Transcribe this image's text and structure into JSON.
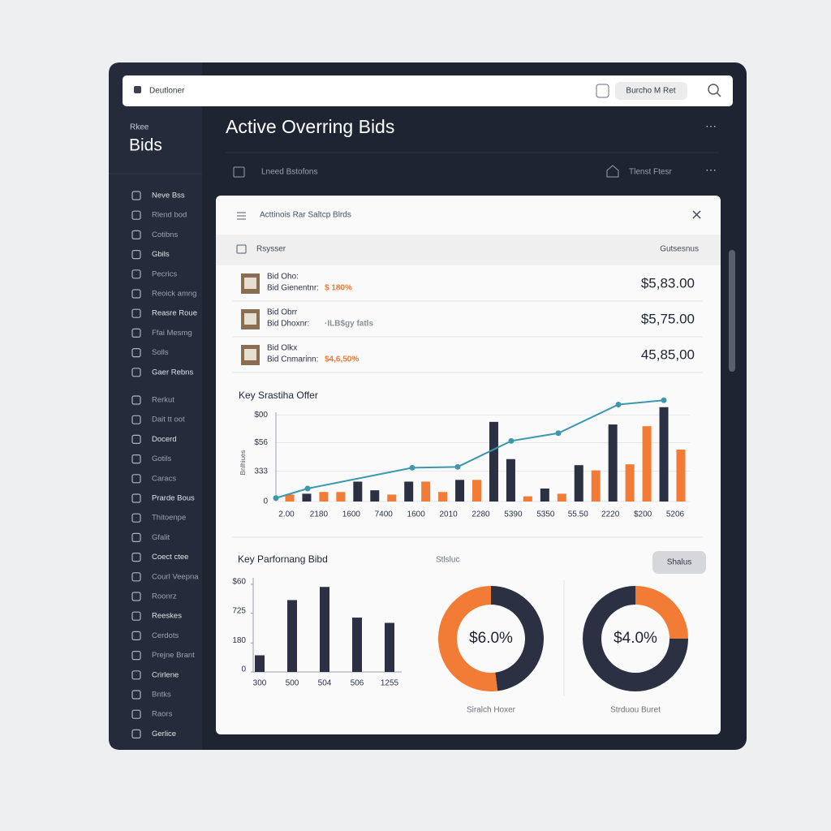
{
  "topbar": {
    "brand": "Deutloner",
    "pill": "Burcho M Ret"
  },
  "sidebar": {
    "kicker": "Rkee",
    "title": "Bids",
    "items": [
      "Neve Bss",
      "Rlend bod",
      "Cotibns",
      "Gbils",
      "Pecrics",
      "Reoick amng",
      "Reasre Roue",
      "Ffai Mesmg",
      "Solls",
      "Gaer Rebns",
      "Rerkut",
      "Dait tt oot",
      "Docerd",
      "Gotils",
      "Caracs",
      "Prarde Bous",
      "Thitoenpe",
      "Gfalit",
      "Coect ctee",
      "Courl Veepna",
      "Roonrz",
      "Reeskes",
      "Cerdots",
      "Prejne Brant",
      "Crirlene",
      "Bntks",
      "Raors",
      "Gerlice"
    ]
  },
  "main": {
    "title": "Active Overring Bids",
    "toolbar_left": "Lneed Bstofons",
    "toolbar_right": "Tlenst Ftesr"
  },
  "panel": {
    "title": "Acttinois Rar Saltcp Blrds",
    "table": {
      "headers": [
        "Rsysser",
        "Gutsesnus"
      ],
      "rows": [
        {
          "name": "Bid Oho:",
          "detail": "Bid Gienentnr:",
          "note": "$ 180%",
          "note_color": "#f07a34",
          "amount": "$5,83.00"
        },
        {
          "name": "Bid Obrr",
          "detail": "Bid Dhoxnr:",
          "note": "·ILB$gy fatls",
          "note_color": "#8a8f99",
          "amount": "$5,75.00"
        },
        {
          "name": "Bid Olkx",
          "detail": "Bid Cnmarinn:",
          "note": "$4,6,50%",
          "note_color": "#f07a34",
          "amount": "45,85,00"
        }
      ]
    }
  },
  "chart_data": [
    {
      "type": "bar",
      "title": "Key Srastiha Offer",
      "ylabel": "Bnlhiues",
      "x_labels": [
        "2.00",
        "2180",
        "1600",
        "7400",
        "1600",
        "2010",
        "2280",
        "5390",
        "5350",
        "55.50",
        "2220",
        "$200",
        "5206"
      ],
      "ylim": [
        0,
        120
      ],
      "yticks": [
        0,
        {
          "value": 35,
          "label": "333"
        },
        {
          "value": 68,
          "label": "$56"
        },
        {
          "value": 100,
          "label": "$00"
        }
      ],
      "grid": true,
      "series": [
        {
          "color": "#2b3142",
          "values": [
            null,
            9,
            null,
            null,
            23,
            13,
            null,
            23,
            null,
            null,
            25,
            null,
            92,
            49,
            null,
            15,
            null,
            42,
            null,
            89,
            null,
            null,
            109,
            null
          ]
        },
        {
          "color": "#f27b35",
          "values": [
            8,
            null,
            11,
            11,
            null,
            null,
            8,
            null,
            23,
            11,
            null,
            25,
            null,
            null,
            6,
            null,
            9,
            null,
            36,
            null,
            43,
            87,
            null,
            60
          ]
        }
      ],
      "line": {
        "color": "#3d97ad",
        "values": [
          4,
          15,
          39,
          40,
          70,
          79,
          112,
          117
        ]
      }
    },
    {
      "type": "bar",
      "title": "Key Parfornang Bibd",
      "categories": [
        "300",
        "500",
        "504",
        "506",
        "1255"
      ],
      "values": [
        19,
        82,
        97,
        62,
        56
      ],
      "color": "#2b3142",
      "ylim": [
        0,
        100
      ],
      "yticks": [
        0,
        {
          "value": 33,
          "label": "180"
        },
        {
          "value": 67,
          "label": "725"
        },
        {
          "value": 100,
          "label": "$60"
        }
      ]
    },
    {
      "type": "pie",
      "heading": "Stlsluc",
      "label": "$6.0%",
      "caption": "Siralch Hoxer",
      "values": [
        48,
        52
      ],
      "colors": [
        "#2b3142",
        "#f27b35"
      ]
    },
    {
      "type": "pie",
      "button": "Shalus",
      "label": "$4.0%",
      "caption": "Strduou Buret",
      "values": [
        25,
        75
      ],
      "colors": [
        "#f27b35",
        "#2b3142"
      ]
    }
  ]
}
